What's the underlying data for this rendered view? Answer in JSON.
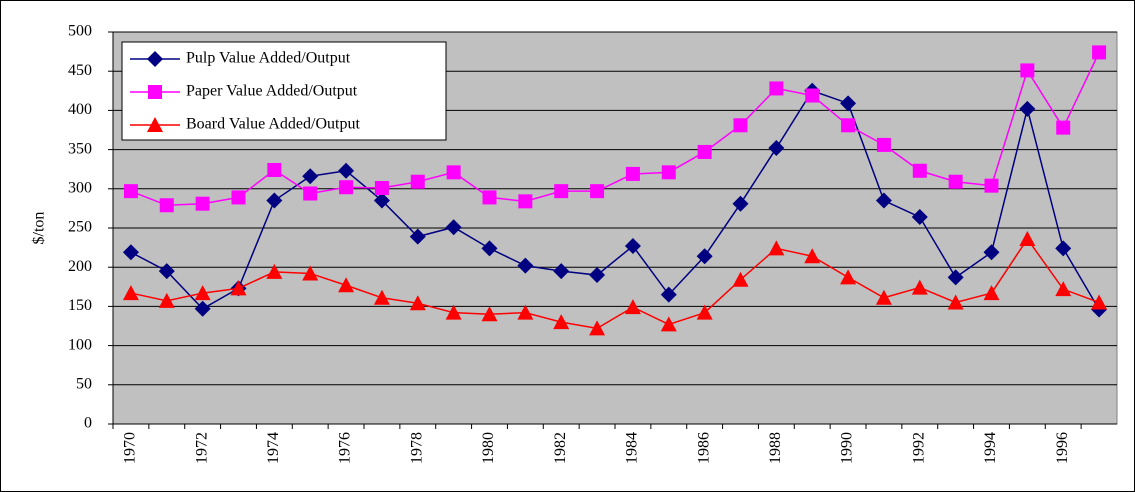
{
  "chart_data": {
    "type": "line",
    "y_label": "$/ton",
    "categories": [
      "1970",
      null,
      "1972",
      null,
      "1974",
      null,
      "1976",
      null,
      "1978",
      null,
      "1980",
      null,
      "1982",
      null,
      "1984",
      null,
      "1986",
      null,
      "1988",
      null,
      "1990",
      null,
      "1992",
      null,
      "1994",
      null,
      "1996",
      null
    ],
    "series": [
      {
        "name": "Pulp Value Added/Output",
        "color": "#000080",
        "marker": "diamond",
        "values": [
          219,
          195,
          147,
          173,
          285,
          316,
          323,
          285,
          239,
          251,
          224,
          202,
          195,
          190,
          227,
          165,
          214,
          281,
          352,
          425,
          409,
          285,
          264,
          187,
          219,
          402,
          224,
          146
        ]
      },
      {
        "name": "Paper Value Added/Output",
        "color": "#ff00ff",
        "marker": "square",
        "values": [
          297,
          279,
          281,
          289,
          324,
          294,
          302,
          301,
          309,
          321,
          289,
          284,
          297,
          297,
          319,
          321,
          347,
          381,
          428,
          419,
          381,
          356,
          323,
          309,
          304,
          451,
          378,
          474
        ]
      },
      {
        "name": "Board Value Added/Output",
        "color": "#ff0000",
        "marker": "triangle",
        "values": [
          167,
          157,
          167,
          173,
          194,
          192,
          177,
          161,
          154,
          142,
          140,
          142,
          130,
          122,
          149,
          127,
          142,
          184,
          224,
          214,
          187,
          161,
          174,
          155,
          167,
          236,
          172,
          155
        ]
      }
    ],
    "ylim": [
      0,
      500
    ],
    "yticks": [
      0,
      50,
      100,
      150,
      200,
      250,
      300,
      350,
      400,
      450,
      500
    ],
    "grid": true,
    "legend": "top-left"
  }
}
